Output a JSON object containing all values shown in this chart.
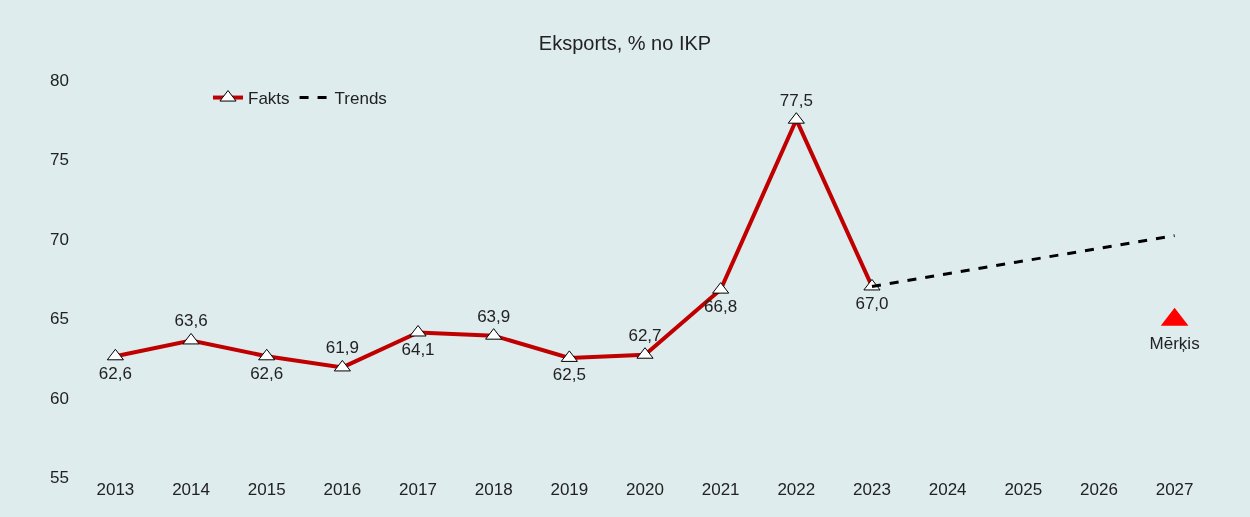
{
  "chart_data": {
    "type": "line",
    "title": "Eksports, % no IKP",
    "categories": [
      "2013",
      "2014",
      "2015",
      "2016",
      "2017",
      "2018",
      "2019",
      "2020",
      "2021",
      "2022",
      "2023",
      "2024",
      "2025",
      "2026",
      "2027"
    ],
    "series": [
      {
        "name": "Fakts",
        "color": "#c00000",
        "marker": "triangle",
        "line_style": "solid",
        "values": [
          62.6,
          63.6,
          62.6,
          61.9,
          64.1,
          63.9,
          62.5,
          62.7,
          66.8,
          77.5,
          67.0,
          null,
          null,
          null,
          null
        ],
        "value_labels": [
          "62,6",
          "63,6",
          "62,6",
          "61,9",
          "64,1",
          "63,9",
          "62,5",
          "62,7",
          "66,8",
          "77,5",
          "67,0",
          null,
          null,
          null,
          null
        ]
      },
      {
        "name": "Trends",
        "color": "#000000",
        "line_style": "dashed",
        "values": [
          null,
          null,
          null,
          null,
          null,
          null,
          null,
          null,
          null,
          null,
          67.0,
          67.8,
          68.6,
          69.4,
          70.2
        ]
      },
      {
        "name": "Mērķis",
        "type": "scatter",
        "color": "#ff0000",
        "marker": "triangle",
        "values": [
          null,
          null,
          null,
          null,
          null,
          null,
          null,
          null,
          null,
          null,
          null,
          null,
          null,
          null,
          64.9
        ]
      }
    ],
    "ylim": [
      55,
      80
    ],
    "yticks": [
      55,
      60,
      65,
      70,
      75,
      80
    ],
    "grid": false,
    "legend": "top left"
  }
}
